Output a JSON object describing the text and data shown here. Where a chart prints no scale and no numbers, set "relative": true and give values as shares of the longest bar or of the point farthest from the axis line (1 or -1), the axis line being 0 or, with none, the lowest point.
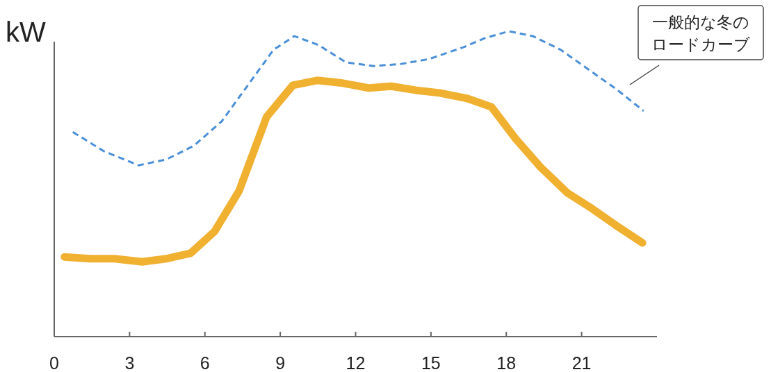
{
  "chart_data": {
    "type": "line",
    "ylabel": "kW",
    "relative": true,
    "xlim": [
      0,
      24
    ],
    "xticks": [
      0,
      3,
      6,
      9,
      12,
      15,
      18,
      21
    ],
    "series": [
      {
        "color": "#4a8fd8",
        "line_style": "dashed",
        "x": [
          0.74,
          1.98,
          3.36,
          4.46,
          5.56,
          6.67,
          7.77,
          8.73,
          9.56,
          10.52,
          11.62,
          12.73,
          13.83,
          14.93,
          16.31,
          17.13,
          18.1,
          19.06,
          20.17,
          21.27,
          22.37,
          23.47
        ],
        "values": [
          0.67,
          0.607,
          0.561,
          0.58,
          0.625,
          0.705,
          0.83,
          0.939,
          0.984,
          0.955,
          0.898,
          0.886,
          0.893,
          0.909,
          0.948,
          0.977,
          1,
          0.984,
          0.939,
          0.875,
          0.811,
          0.739
        ]
      },
      {
        "color": "#f0b030",
        "line_style": "solid",
        "x": [
          0.41,
          1.43,
          2.4,
          3.5,
          4.46,
          5.43,
          6.39,
          7.36,
          8.46,
          9.5,
          10.47,
          11.49,
          12.53,
          13.42,
          14.38,
          15.34,
          16.44,
          17.41,
          18.37,
          19.34,
          20.44,
          21.4,
          22.37,
          23.42
        ],
        "values": [
          0.261,
          0.255,
          0.255,
          0.245,
          0.255,
          0.273,
          0.345,
          0.477,
          0.72,
          0.823,
          0.839,
          0.83,
          0.814,
          0.82,
          0.807,
          0.798,
          0.78,
          0.752,
          0.648,
          0.557,
          0.47,
          0.42,
          0.364,
          0.307
        ]
      }
    ],
    "annotations": [
      "一般的な冬の",
      "ロードカーブ"
    ]
  }
}
